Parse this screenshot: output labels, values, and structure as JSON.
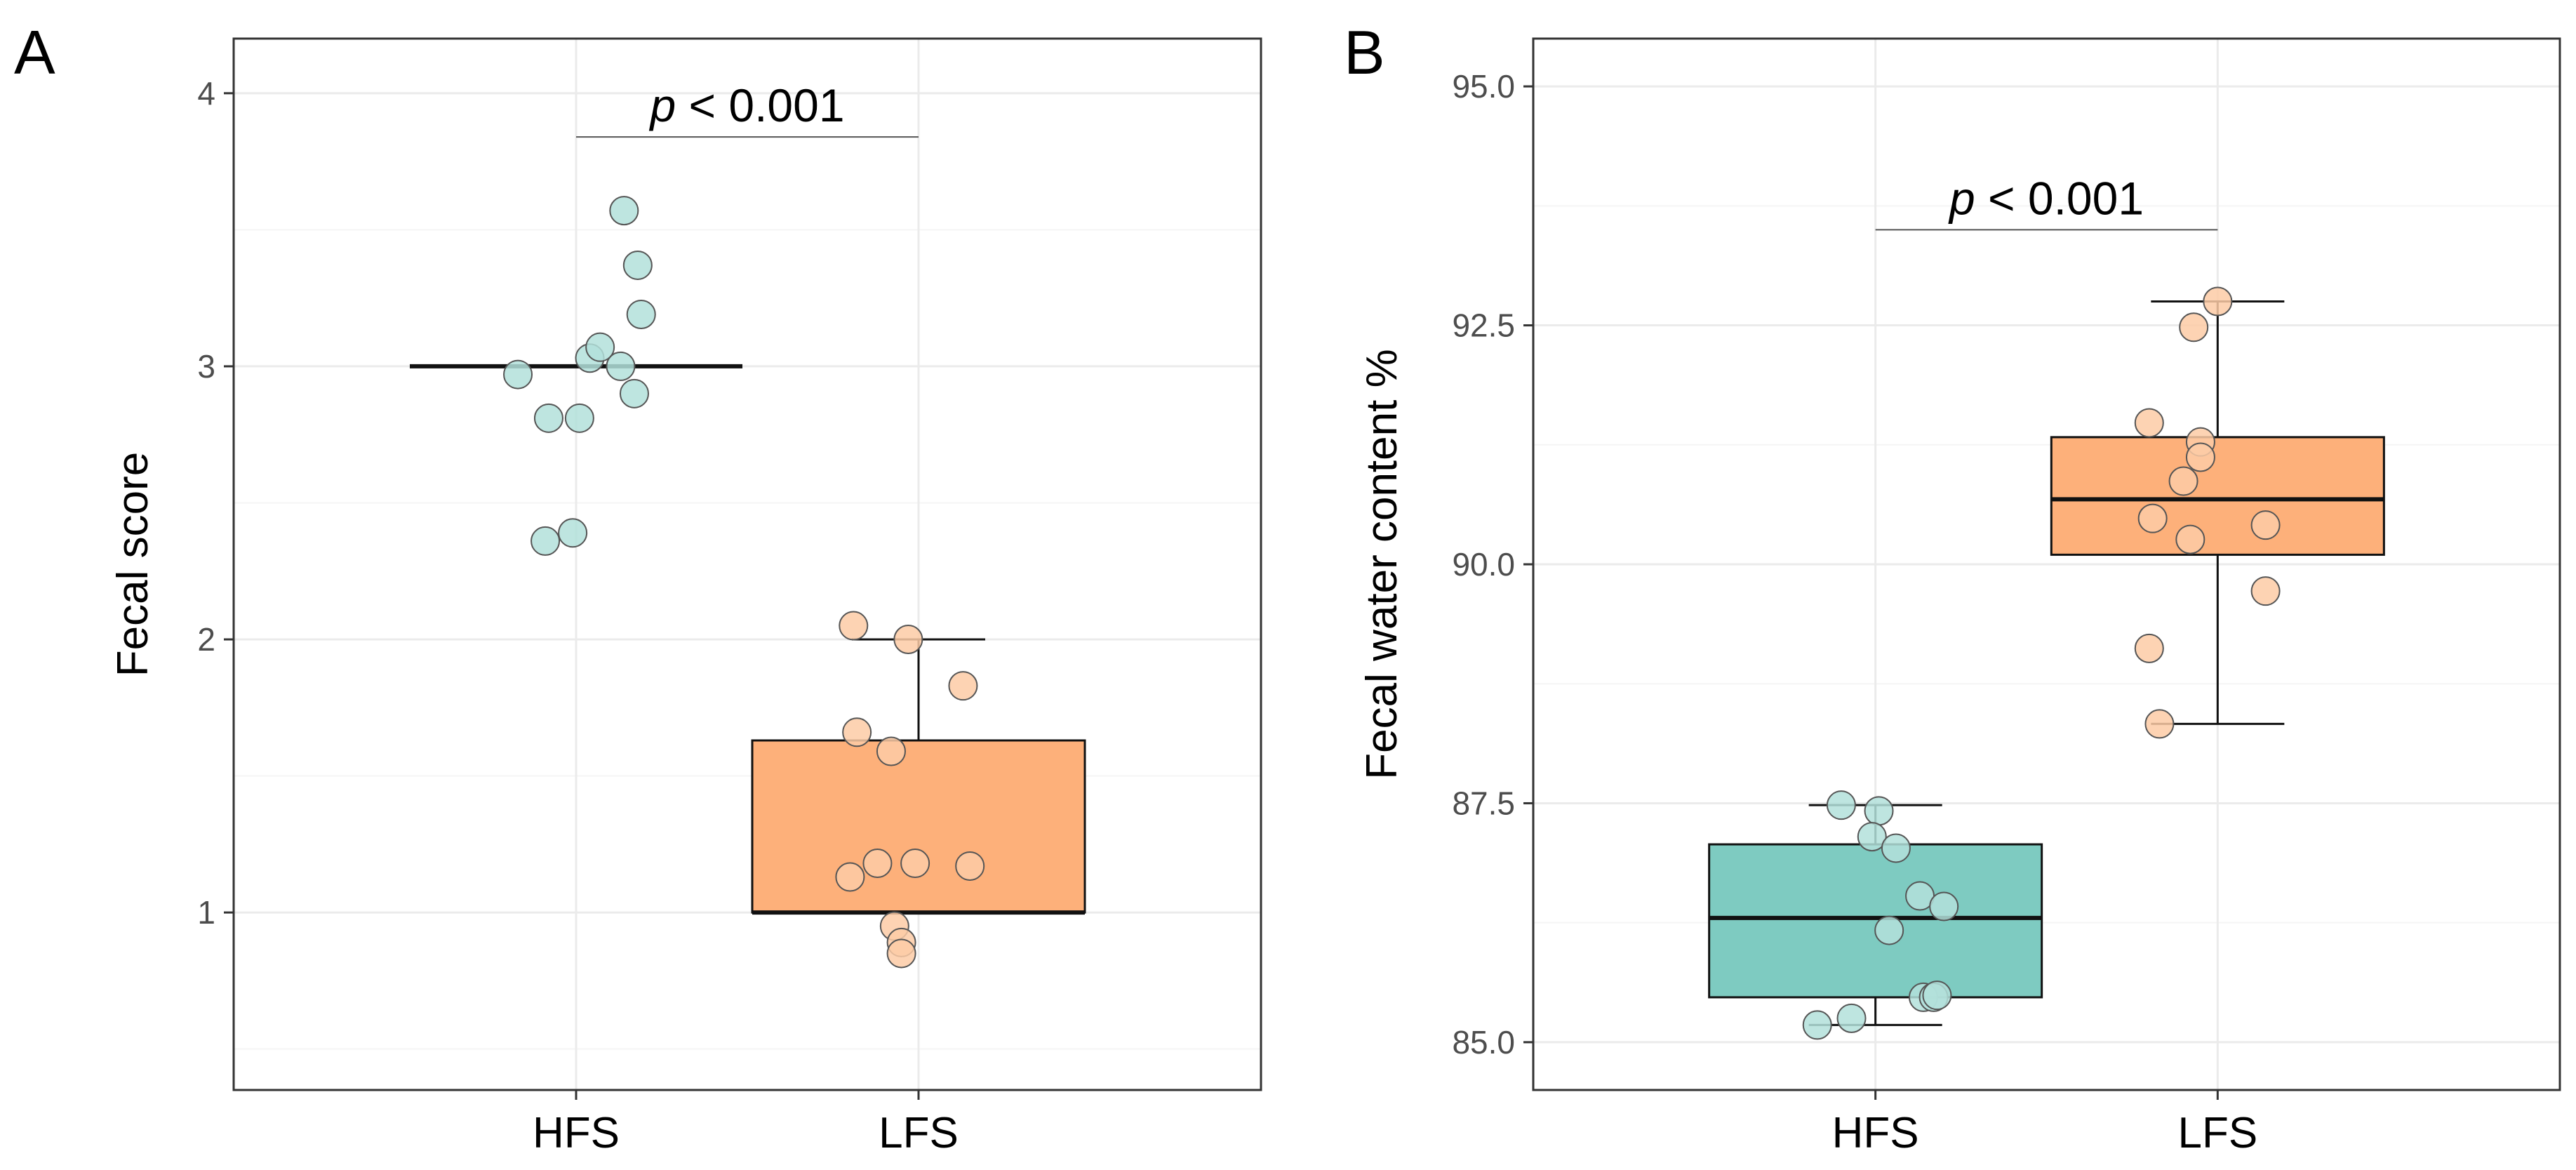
{
  "chart_data": [
    {
      "panel": "A",
      "type": "boxplot",
      "ylabel": "Fecal score",
      "xlabel": "",
      "ylim": [
        0.35,
        4.2
      ],
      "yticks": [
        1,
        2,
        3,
        4
      ],
      "categories": [
        "HFS",
        "LFS"
      ],
      "annotation": {
        "p_italic": "p",
        "p_rest": " < 0.001",
        "y": 3.84
      },
      "groups": [
        {
          "name": "HFS",
          "box": {
            "q1": 3.0,
            "median": 3.0,
            "q3": 3.0,
            "whisker_low": 3.0,
            "whisker_high": 3.0
          },
          "points": [
            {
              "x": -0.17,
              "y": 2.97
            },
            {
              "x": -0.08,
              "y": 2.81
            },
            {
              "x": 0.01,
              "y": 2.81
            },
            {
              "x": -0.09,
              "y": 2.36
            },
            {
              "x": -0.01,
              "y": 2.39
            },
            {
              "x": 0.04,
              "y": 3.03
            },
            {
              "x": 0.07,
              "y": 3.07
            },
            {
              "x": 0.13,
              "y": 3.0
            },
            {
              "x": 0.17,
              "y": 2.9
            },
            {
              "x": 0.14,
              "y": 3.57
            },
            {
              "x": 0.18,
              "y": 3.37
            },
            {
              "x": 0.19,
              "y": 3.19
            }
          ]
        },
        {
          "name": "LFS",
          "box": {
            "q1": 1.0,
            "median": 1.0,
            "q3": 1.63,
            "whisker_low": 1.0,
            "whisker_high": 2.0
          },
          "points": [
            {
              "x": -0.19,
              "y": 2.05
            },
            {
              "x": -0.03,
              "y": 2.0
            },
            {
              "x": 0.13,
              "y": 1.83
            },
            {
              "x": -0.18,
              "y": 1.66
            },
            {
              "x": -0.08,
              "y": 1.59
            },
            {
              "x": -0.2,
              "y": 1.13
            },
            {
              "x": -0.12,
              "y": 1.18
            },
            {
              "x": -0.01,
              "y": 1.18
            },
            {
              "x": 0.15,
              "y": 1.17
            },
            {
              "x": -0.07,
              "y": 0.95
            },
            {
              "x": -0.05,
              "y": 0.89
            },
            {
              "x": -0.05,
              "y": 0.85
            }
          ]
        }
      ]
    },
    {
      "panel": "B",
      "type": "boxplot",
      "ylabel": "Fecal water content %",
      "xlabel": "",
      "ylim": [
        84.5,
        95.5
      ],
      "yticks": [
        85.0,
        87.5,
        90.0,
        92.5,
        95.0
      ],
      "yticklabels": [
        "85.0",
        "87.5",
        "90.0",
        "92.5",
        "95.0"
      ],
      "categories": [
        "HFS",
        "LFS"
      ],
      "annotation": {
        "p_italic": "p",
        "p_rest": " < 0.001",
        "y": 93.5
      },
      "groups": [
        {
          "name": "HFS",
          "box": {
            "q1": 85.47,
            "median": 86.3,
            "q3": 87.07,
            "whisker_low": 85.18,
            "whisker_high": 87.48
          },
          "points": [
            {
              "x": -0.1,
              "y": 87.48
            },
            {
              "x": 0.01,
              "y": 87.42
            },
            {
              "x": -0.01,
              "y": 87.15
            },
            {
              "x": 0.06,
              "y": 87.03
            },
            {
              "x": 0.13,
              "y": 86.53
            },
            {
              "x": 0.2,
              "y": 86.42
            },
            {
              "x": 0.04,
              "y": 86.17
            },
            {
              "x": 0.14,
              "y": 85.47
            },
            {
              "x": 0.17,
              "y": 85.47
            },
            {
              "x": 0.18,
              "y": 85.49
            },
            {
              "x": -0.07,
              "y": 85.25
            },
            {
              "x": -0.17,
              "y": 85.18
            }
          ]
        },
        {
          "name": "LFS",
          "box": {
            "q1": 90.1,
            "median": 90.68,
            "q3": 91.33,
            "whisker_low": 88.33,
            "whisker_high": 92.75
          },
          "points": [
            {
              "x": 0.0,
              "y": 92.75
            },
            {
              "x": -0.07,
              "y": 92.48
            },
            {
              "x": -0.2,
              "y": 91.48
            },
            {
              "x": -0.05,
              "y": 91.28
            },
            {
              "x": -0.05,
              "y": 91.12
            },
            {
              "x": -0.1,
              "y": 90.87
            },
            {
              "x": -0.19,
              "y": 90.48
            },
            {
              "x": -0.08,
              "y": 90.26
            },
            {
              "x": 0.14,
              "y": 90.41
            },
            {
              "x": 0.14,
              "y": 89.72
            },
            {
              "x": -0.2,
              "y": 89.12
            },
            {
              "x": -0.17,
              "y": 88.33
            }
          ]
        }
      ]
    }
  ],
  "style": {
    "hfs_point": "#b3e0db",
    "lfs_point": "#fdcba6",
    "hfs_box": "#7ecbc1",
    "lfs_box": "#fdb07a",
    "grid_major": "#ebebeb",
    "grid_minor": "#f5f5f5",
    "panel_border": "#333333",
    "point_edge": "#555555"
  }
}
